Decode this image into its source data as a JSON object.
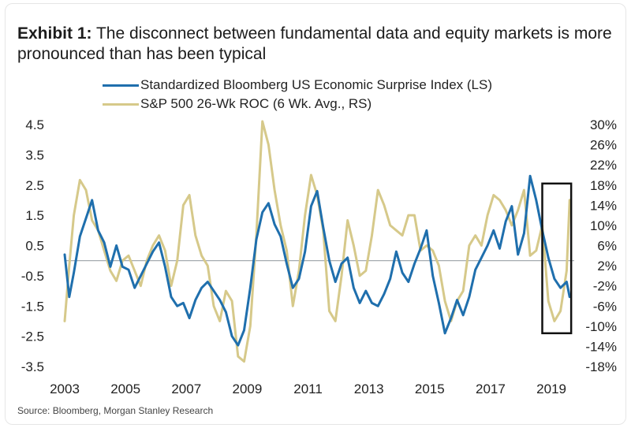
{
  "title": {
    "prefix": "Exhibit 1:",
    "text": "The disconnect between fundamental data and equity markets is more pronounced than has been typical"
  },
  "source": "Source: Bloomberg, Morgan Stanley Research",
  "colors": {
    "blue": "#1f6fad",
    "gold": "#d6c98a",
    "zero_line": "#9aa0a6",
    "highlight_box": "#111111"
  },
  "chart_data": {
    "type": "line",
    "legend_position": "top-left",
    "grid": false,
    "x_range": [
      2003.0,
      2019.75
    ],
    "x_ticks": [
      "2003",
      "2005",
      "2007",
      "2009",
      "2011",
      "2013",
      "2015",
      "2017",
      "2019"
    ],
    "y_left": {
      "range": [
        -3.5,
        4.5
      ],
      "tick_labels": [
        "4.5",
        "3.5",
        "2.5",
        "1.5",
        "0.5",
        "-0.5",
        "-1.5",
        "-2.5",
        "-3.5"
      ]
    },
    "y_right": {
      "range": [
        -18,
        30
      ],
      "unit": "%",
      "tick_labels": [
        "30%",
        "26%",
        "22%",
        "18%",
        "14%",
        "10%",
        "6%",
        "2%",
        "-2%",
        "-6%",
        "-10%",
        "-14%",
        "-18%"
      ]
    },
    "reference_line_left": 0,
    "highlight_box": {
      "x": [
        2018.7,
        2019.65
      ],
      "y_left": [
        -2.4,
        2.55
      ]
    },
    "series": [
      {
        "name": "Standardized Bloomberg US Economic Surprise Index (LS)",
        "axis": "left",
        "x": [
          2003.0,
          2003.15,
          2003.3,
          2003.5,
          2003.7,
          2003.9,
          2004.1,
          2004.3,
          2004.5,
          2004.7,
          2004.9,
          2005.1,
          2005.3,
          2005.5,
          2005.7,
          2005.9,
          2006.1,
          2006.3,
          2006.5,
          2006.7,
          2006.9,
          2007.1,
          2007.3,
          2007.5,
          2007.7,
          2007.9,
          2008.1,
          2008.3,
          2008.5,
          2008.7,
          2008.9,
          2009.1,
          2009.3,
          2009.5,
          2009.7,
          2009.9,
          2010.1,
          2010.3,
          2010.5,
          2010.7,
          2010.9,
          2011.1,
          2011.3,
          2011.5,
          2011.7,
          2011.9,
          2012.1,
          2012.3,
          2012.5,
          2012.7,
          2012.9,
          2013.1,
          2013.3,
          2013.5,
          2013.7,
          2013.9,
          2014.1,
          2014.3,
          2014.5,
          2014.7,
          2014.9,
          2015.1,
          2015.3,
          2015.5,
          2015.7,
          2015.9,
          2016.1,
          2016.3,
          2016.5,
          2016.7,
          2016.9,
          2017.1,
          2017.3,
          2017.5,
          2017.7,
          2017.9,
          2018.1,
          2018.3,
          2018.5,
          2018.7,
          2018.9,
          2019.1,
          2019.3,
          2019.5,
          2019.6
        ],
        "values": [
          0.2,
          -1.2,
          -0.4,
          0.8,
          1.4,
          2.0,
          1.0,
          0.6,
          -0.2,
          0.5,
          -0.2,
          -0.3,
          -0.9,
          -0.5,
          -0.1,
          0.3,
          0.6,
          -0.2,
          -1.2,
          -1.5,
          -1.4,
          -1.9,
          -1.3,
          -0.9,
          -0.7,
          -1.0,
          -1.3,
          -1.7,
          -2.5,
          -2.8,
          -2.3,
          -0.9,
          0.7,
          1.6,
          1.9,
          1.2,
          0.8,
          -0.1,
          -0.9,
          -0.6,
          0.3,
          1.8,
          2.3,
          1.1,
          0.0,
          -0.7,
          -0.1,
          0.1,
          -0.9,
          -1.4,
          -1.0,
          -1.4,
          -1.5,
          -1.1,
          -0.6,
          0.3,
          -0.4,
          -0.7,
          -0.1,
          0.4,
          1.0,
          -0.5,
          -1.4,
          -2.4,
          -1.9,
          -1.3,
          -1.8,
          -1.2,
          -0.3,
          0.1,
          0.5,
          1.0,
          0.4,
          1.3,
          1.8,
          0.2,
          0.9,
          2.8,
          2.0,
          1.0,
          0.1,
          -0.6,
          -0.9,
          -0.7,
          -1.2
        ]
      },
      {
        "name": "S&P 500 26-Wk ROC (6 Wk. Avg., RS)",
        "axis": "right",
        "x": [
          2003.0,
          2003.15,
          2003.3,
          2003.5,
          2003.7,
          2003.9,
          2004.1,
          2004.3,
          2004.5,
          2004.7,
          2004.9,
          2005.1,
          2005.3,
          2005.5,
          2005.7,
          2005.9,
          2006.1,
          2006.3,
          2006.5,
          2006.7,
          2006.9,
          2007.1,
          2007.3,
          2007.5,
          2007.7,
          2007.9,
          2008.1,
          2008.3,
          2008.5,
          2008.7,
          2008.9,
          2009.1,
          2009.3,
          2009.5,
          2009.7,
          2009.9,
          2010.1,
          2010.3,
          2010.5,
          2010.7,
          2010.9,
          2011.1,
          2011.3,
          2011.5,
          2011.7,
          2011.9,
          2012.1,
          2012.3,
          2012.5,
          2012.7,
          2012.9,
          2013.1,
          2013.3,
          2013.5,
          2013.7,
          2013.9,
          2014.1,
          2014.3,
          2014.5,
          2014.7,
          2014.9,
          2015.1,
          2015.3,
          2015.5,
          2015.7,
          2015.9,
          2016.1,
          2016.3,
          2016.5,
          2016.7,
          2016.9,
          2017.1,
          2017.3,
          2017.5,
          2017.7,
          2017.9,
          2018.1,
          2018.3,
          2018.5,
          2018.7,
          2018.9,
          2019.1,
          2019.3,
          2019.5,
          2019.6
        ],
        "values": [
          -9,
          2,
          12,
          19,
          17,
          11,
          9,
          5,
          1,
          -1,
          3,
          4,
          1,
          -2,
          3,
          6,
          8,
          5,
          -2,
          3,
          14,
          16,
          8,
          4,
          2,
          -6,
          -9,
          -3,
          -5,
          -16,
          -17,
          -10,
          8,
          31,
          26,
          17,
          10,
          5,
          -6,
          1,
          12,
          20,
          16,
          9,
          -7,
          -9,
          0,
          11,
          6,
          0,
          1,
          8,
          17,
          14,
          10,
          9,
          8,
          12,
          12,
          5,
          6,
          5,
          2,
          -5,
          -9,
          -5,
          -3,
          6,
          8,
          6,
          12,
          16,
          15,
          13,
          10,
          13,
          17,
          4,
          5,
          10,
          -5,
          -9,
          -7,
          1,
          15
        ]
      }
    ]
  }
}
